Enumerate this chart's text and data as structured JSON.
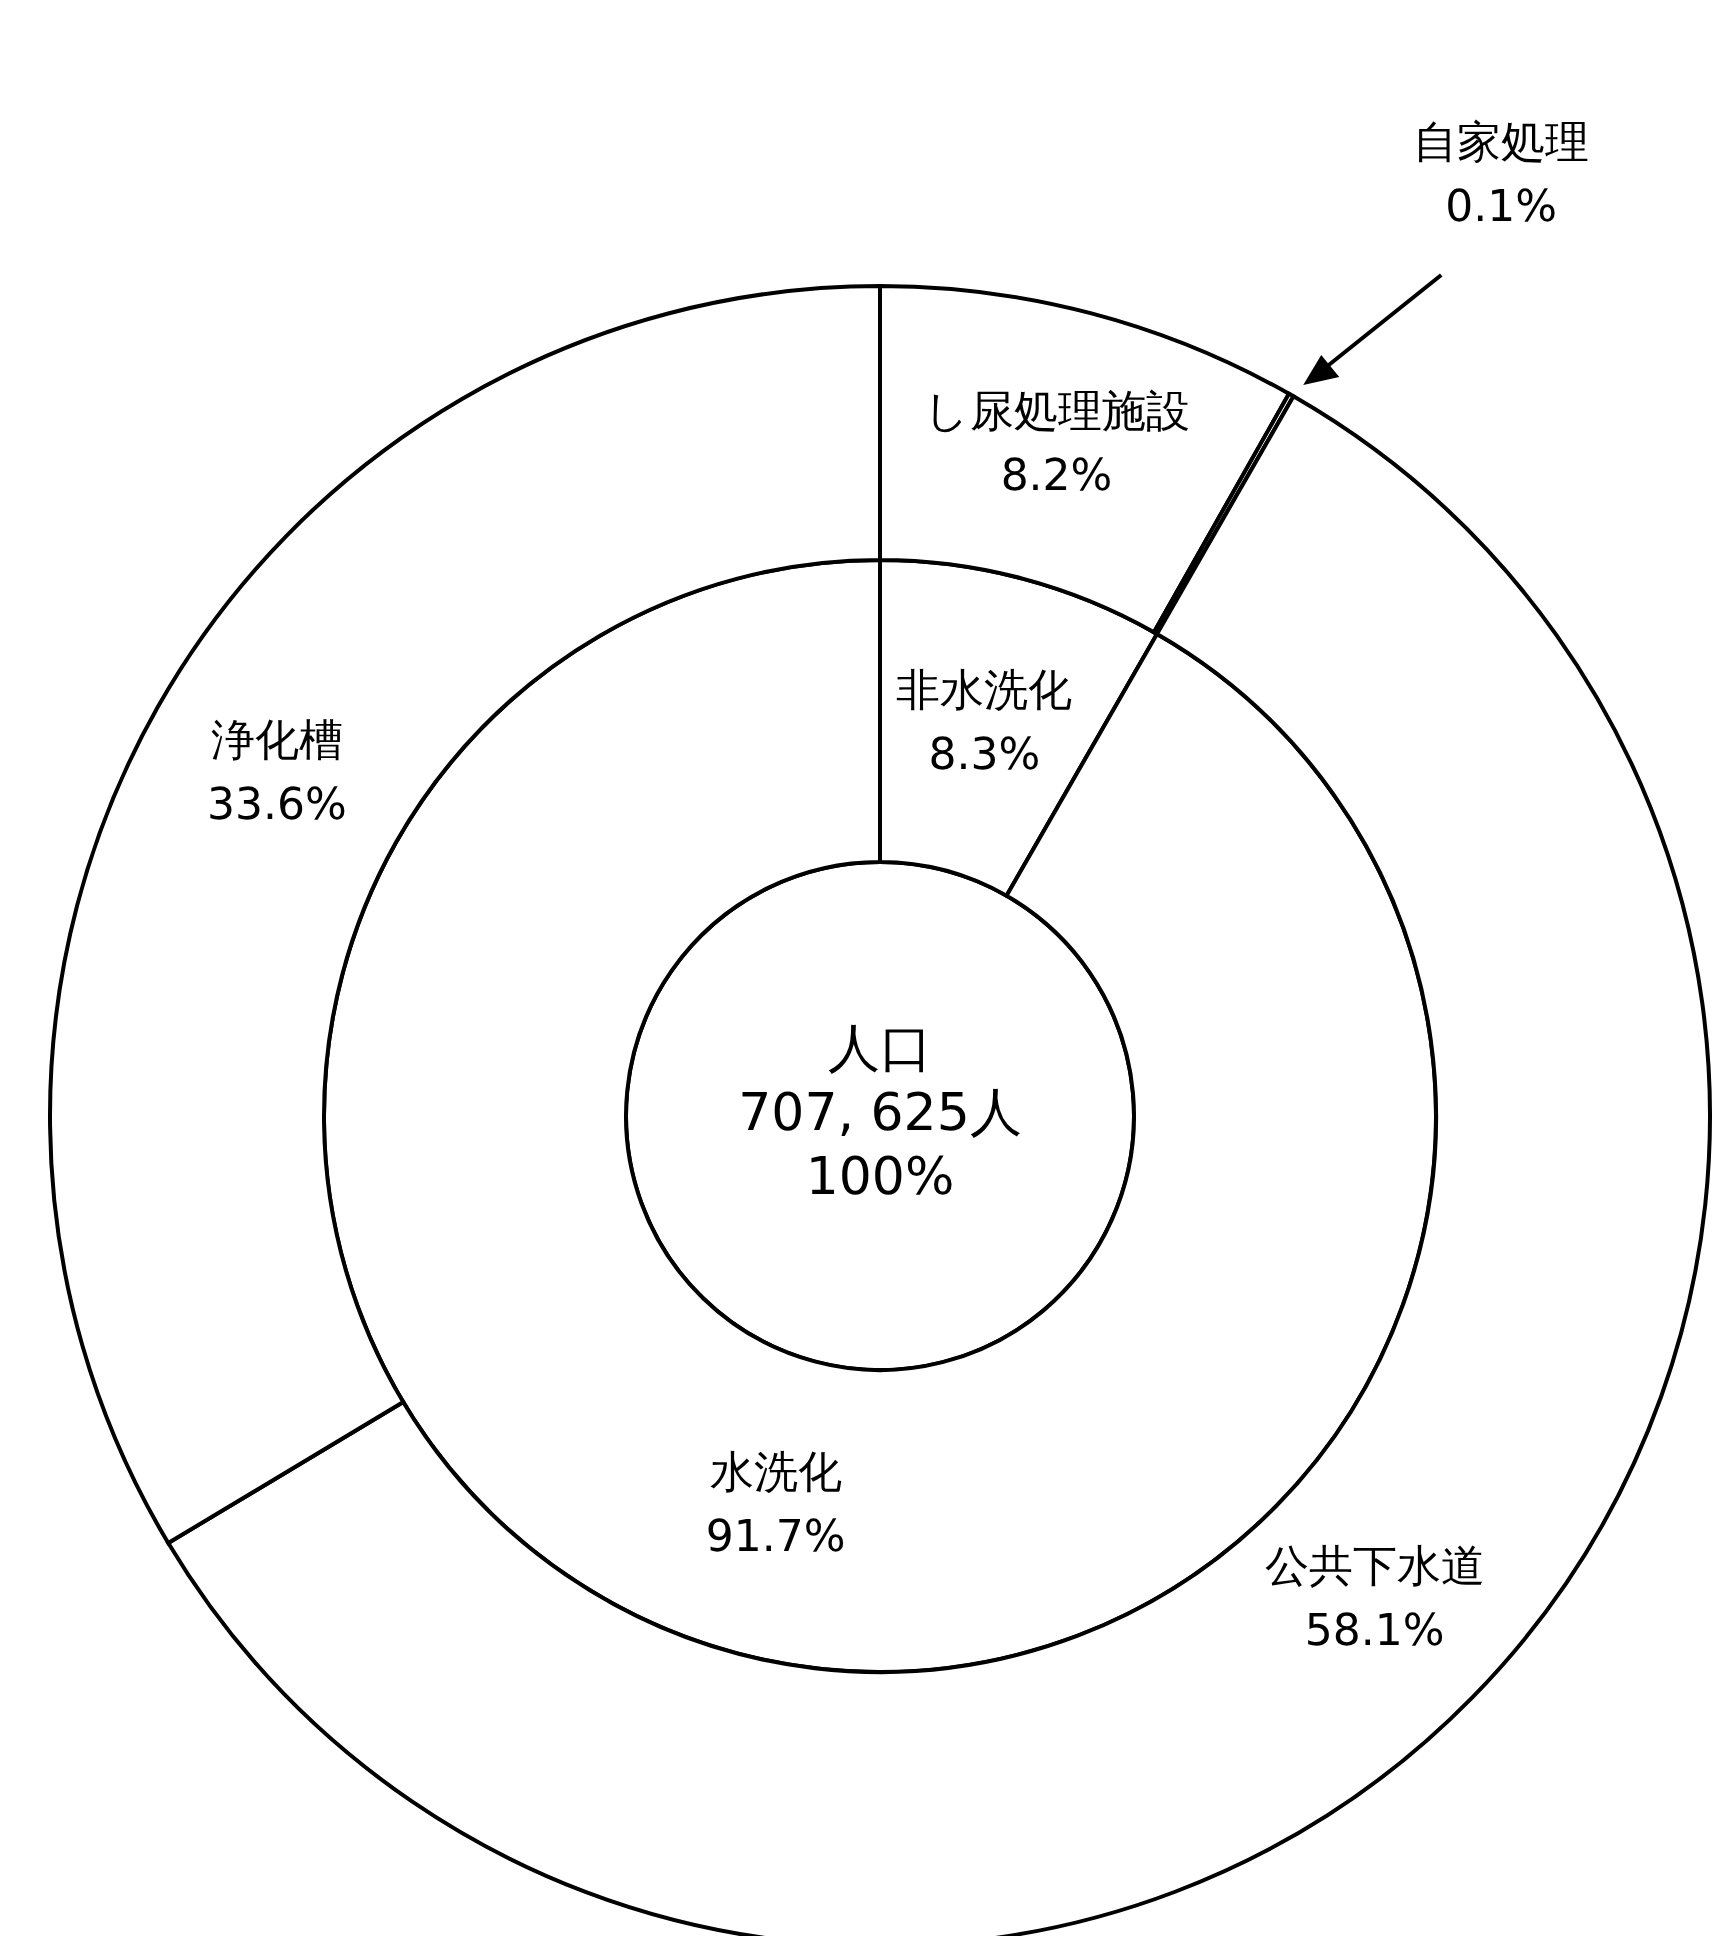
{
  "chart_data": [
    {
      "type": "pie",
      "categories": [
        "人口"
      ],
      "values": [
        100
      ],
      "colors": [
        "#ffffff"
      ],
      "value_labels": [
        "100%"
      ],
      "annotations": [
        "707, 625人"
      ]
    },
    {
      "type": "donut",
      "categories": [
        "非水洗化",
        "水洗化"
      ],
      "values": [
        8.3,
        91.7
      ],
      "colors": [
        "#ffffff",
        "#ffffff"
      ],
      "value_labels": [
        "8.3%",
        "91.7%"
      ]
    },
    {
      "type": "donut",
      "categories": [
        "し尿処理施設",
        "自家処理",
        "公共下水道",
        "浄化槽"
      ],
      "values": [
        8.2,
        0.1,
        58.1,
        33.6
      ],
      "colors": [
        "#ffffff",
        "#ffffff",
        "#ffffff",
        "#ffffff"
      ],
      "value_labels": [
        "8.2%",
        "0.1%",
        "58.1%",
        "33.6%"
      ]
    }
  ]
}
